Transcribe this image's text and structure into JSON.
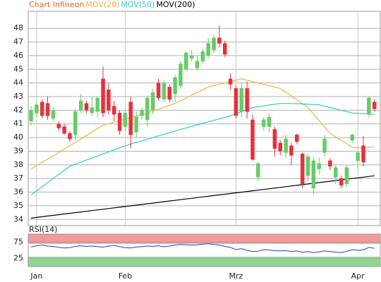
{
  "chart_data": [
    {
      "type": "candlestick",
      "title": "Chart Infineon",
      "title_color": "#e8601c",
      "categories": [
        null,
        "Jan",
        null,
        null,
        null,
        null,
        null,
        null,
        null,
        null,
        null,
        null,
        null,
        null,
        null,
        null,
        null,
        "Feb",
        null,
        null,
        null,
        null,
        null,
        null,
        null,
        null,
        null,
        null,
        null,
        null,
        null,
        null,
        null,
        null,
        null,
        null,
        null,
        "Mrz",
        null,
        null,
        null,
        null,
        null,
        null,
        null,
        null,
        null,
        null,
        null,
        null,
        null,
        null,
        null,
        null,
        null,
        null,
        null,
        null,
        null,
        "Apr",
        null,
        null,
        null
      ],
      "open": [
        41.2,
        41.8,
        42.6,
        42.5,
        41.4,
        41.0,
        40.8,
        40.3,
        40.2,
        42.0,
        42.5,
        41.8,
        41.9,
        44.3,
        43.5,
        42.3,
        41.8,
        40.8,
        42.6,
        40.4,
        41.6,
        41.3,
        42.0,
        44.0,
        42.8,
        43.7,
        43.2,
        43.8,
        45.0,
        45.8,
        45.1,
        45.6,
        46.0,
        46.4,
        47.3,
        46.9,
        44.3,
        43.6,
        41.9,
        43.6,
        41.3,
        37.1,
        40.8,
        40.8,
        40.6,
        39.6,
        38.9,
        39.4,
        40.2,
        38.8,
        37.2,
        36.3,
        37.7,
        38.9,
        38.3,
        37.1,
        37.0,
        36.6,
        39.8,
        38.3,
        39.4,
        41.7,
        42.6
      ],
      "high": [
        42.3,
        42.6,
        42.8,
        43.0,
        42.2,
        41.2,
        41.0,
        40.5,
        42.1,
        43.2,
        42.7,
        43.0,
        43.0,
        45.2,
        44.0,
        42.7,
        42.0,
        42.0,
        43.0,
        41.9,
        42.2,
        43.1,
        43.6,
        44.3,
        44.2,
        43.9,
        44.6,
        45.6,
        46.3,
        46.4,
        46.0,
        46.5,
        47.3,
        47.5,
        48.2,
        47.1,
        44.7,
        43.8,
        44.0,
        44.1,
        41.7,
        38.2,
        41.5,
        41.8,
        40.8,
        39.8,
        40.2,
        39.6,
        40.3,
        38.9,
        38.8,
        38.5,
        38.5,
        40.2,
        38.5,
        38.0,
        37.2,
        38.0,
        40.3,
        39.0,
        40.1,
        43.0,
        42.8
      ],
      "low": [
        40.9,
        41.5,
        41.4,
        41.3,
        41.2,
        40.5,
        40.2,
        39.7,
        39.8,
        41.8,
        41.8,
        41.6,
        41.5,
        41.5,
        41.7,
        41.2,
        40.2,
        40.5,
        39.2,
        40.0,
        41.3,
        40.8,
        41.7,
        42.7,
        42.6,
        42.6,
        42.6,
        43.6,
        44.9,
        45.6,
        44.9,
        45.4,
        45.8,
        46.2,
        46.6,
        45.9,
        43.5,
        41.4,
        41.5,
        41.4,
        38.3,
        36.8,
        40.5,
        40.4,
        38.6,
        38.7,
        38.5,
        38.0,
        39.5,
        36.3,
        36.8,
        35.8,
        37.3,
        38.6,
        37.6,
        36.6,
        36.3,
        36.4,
        39.6,
        37.7,
        37.9,
        41.5,
        41.9
      ],
      "close": [
        42.0,
        42.4,
        41.6,
        41.6,
        42.0,
        40.7,
        40.3,
        39.9,
        41.9,
        42.7,
        42.0,
        42.2,
        42.9,
        41.8,
        42.0,
        41.7,
        40.5,
        41.8,
        40.2,
        41.5,
        42.0,
        42.9,
        43.3,
        42.9,
        44.0,
        42.8,
        44.4,
        45.4,
        46.2,
        46.0,
        45.6,
        46.3,
        46.9,
        47.3,
        46.9,
        46.1,
        43.9,
        41.6,
        43.6,
        41.9,
        38.4,
        38.1,
        41.3,
        41.5,
        39.2,
        39.0,
        39.9,
        38.7,
        39.7,
        36.6,
        38.6,
        38.3,
        38.1,
        39.9,
        37.9,
        37.8,
        36.5,
        37.8,
        40.2,
        38.9,
        38.2,
        42.9,
        42.1
      ],
      "up_color": "#66cc66",
      "down_color": "#e8303a",
      "series": [
        {
          "name": "MOV(20)",
          "color": "#f0b43c",
          "values": [
            37.7,
            37.94,
            38.19,
            38.43,
            38.67,
            38.91,
            39.16,
            39.4,
            39.65,
            39.9,
            40.15,
            40.4,
            40.65,
            40.9,
            41.01,
            41.13,
            41.24,
            41.35,
            41.46,
            41.58,
            41.69,
            41.8,
            41.94,
            42.08,
            42.22,
            42.36,
            42.5,
            42.7,
            42.9,
            43.1,
            43.3,
            43.5,
            43.7,
            43.8,
            43.9,
            44.0,
            44.1,
            44.2,
            44.3,
            44.2,
            44.1,
            44.0,
            43.9,
            43.8,
            43.7,
            43.6,
            43.32,
            43.04,
            42.76,
            42.48,
            42.2,
            41.73,
            41.25,
            40.78,
            40.3,
            40.05,
            39.8,
            39.55,
            39.3,
            39.25,
            39.25,
            39.3,
            39.3
          ]
        },
        {
          "name": "MOV(50)",
          "color": "#30c8d8",
          "values": [
            35.8,
            36.1,
            36.4,
            36.7,
            37.0,
            37.3,
            37.6,
            37.9,
            38.05,
            38.2,
            38.35,
            38.5,
            38.65,
            38.8,
            38.95,
            39.1,
            39.25,
            39.4,
            39.52,
            39.64,
            39.76,
            39.88,
            40.0,
            40.12,
            40.24,
            40.36,
            40.48,
            40.6,
            40.71,
            40.82,
            40.93,
            41.04,
            41.15,
            41.26,
            41.37,
            41.48,
            41.6,
            41.75,
            41.9,
            42.05,
            42.2,
            42.26,
            42.32,
            42.38,
            42.44,
            42.5,
            42.5,
            42.5,
            42.48,
            42.46,
            42.44,
            42.42,
            42.4,
            42.3,
            42.2,
            42.1,
            42.0,
            41.9,
            41.8,
            41.78,
            41.75,
            41.72,
            41.7
          ]
        },
        {
          "name": "MOV(200)",
          "color": "#000000",
          "values": [
            34.1,
            34.15,
            34.2,
            34.25,
            34.3,
            34.35,
            34.4,
            34.45,
            34.5,
            34.55,
            34.6,
            34.65,
            34.7,
            34.75,
            34.8,
            34.85,
            34.9,
            34.95,
            35,
            35.05,
            35.1,
            35.15,
            35.2,
            35.25,
            35.3,
            35.35,
            35.4,
            35.45,
            35.5,
            35.55,
            35.6,
            35.65,
            35.7,
            35.75,
            35.8,
            35.85,
            35.9,
            35.95,
            36,
            36.05,
            36.1,
            36.15,
            36.2,
            36.25,
            36.3,
            36.35,
            36.4,
            36.45,
            36.5,
            36.55,
            36.6,
            36.65,
            36.7,
            36.75,
            36.8,
            36.85,
            36.9,
            36.95,
            37,
            37.05,
            37.1,
            37.15,
            37.2
          ]
        }
      ],
      "ylim": [
        33.55,
        49.25
      ],
      "yticks": [
        34,
        35,
        36,
        37,
        38,
        39,
        40,
        41,
        42,
        43,
        44,
        45,
        46,
        47,
        48
      ],
      "grid": true
    },
    {
      "type": "line",
      "title": "RSI(14)",
      "color": "#2040d0",
      "values": [
        60,
        64,
        66,
        63,
        62,
        59,
        57,
        58,
        62,
        64,
        62,
        63,
        61,
        60,
        63,
        65,
        61,
        58,
        57,
        60,
        61,
        63,
        62,
        64,
        61,
        63,
        66,
        68,
        67,
        66,
        67,
        69,
        70,
        68,
        66,
        62,
        59,
        52,
        55,
        50,
        46,
        47,
        52,
        51,
        49,
        48,
        49,
        46,
        48,
        44,
        46,
        43,
        45,
        48,
        46,
        44,
        43,
        47,
        52,
        50,
        51,
        59,
        56
      ],
      "ylim": [
        0,
        100
      ],
      "yticks": [
        25,
        75
      ],
      "bands": [
        {
          "from": 70,
          "to": 100,
          "color": "#f29a9a"
        },
        {
          "from": 0,
          "to": 30,
          "color": "#8ed88e"
        }
      ]
    }
  ]
}
